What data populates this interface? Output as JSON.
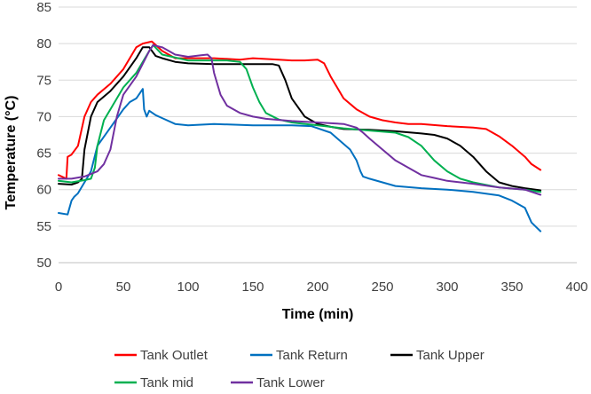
{
  "chart_data": {
    "type": "line",
    "xlabel": "Time (min)",
    "ylabel": "Temperature (°C)",
    "xlim": [
      0,
      400
    ],
    "ylim": [
      50,
      85
    ],
    "xticks": [
      "0",
      "50",
      "100",
      "150",
      "200",
      "250",
      "300",
      "350",
      "400"
    ],
    "yticks": [
      "50",
      "55",
      "60",
      "65",
      "70",
      "75",
      "80",
      "85"
    ],
    "grid": "horizontal",
    "legend": "bottom",
    "series": [
      {
        "name": "Tank Outlet",
        "color": "#ff0000",
        "x": [
          0,
          6,
          7,
          10,
          15,
          20,
          25,
          30,
          40,
          50,
          60,
          65,
          72,
          80,
          90,
          100,
          120,
          140,
          150,
          170,
          180,
          190,
          200,
          205,
          210,
          215,
          220,
          230,
          240,
          250,
          260,
          270,
          280,
          300,
          320,
          330,
          340,
          350,
          360,
          365,
          372
        ],
        "y": [
          62,
          61.5,
          64.5,
          64.8,
          66,
          70,
          72,
          73,
          74.5,
          76.5,
          79.5,
          80,
          80.3,
          79,
          78,
          78,
          78,
          77.8,
          78,
          77.8,
          77.7,
          77.7,
          77.8,
          77.3,
          75.5,
          74,
          72.5,
          71,
          70,
          69.5,
          69.2,
          69,
          69,
          68.7,
          68.5,
          68.3,
          67.3,
          66,
          64.5,
          63.5,
          62.7
        ]
      },
      {
        "name": "Tank Return",
        "color": "#0070c0",
        "x": [
          0,
          7,
          10,
          12,
          15,
          20,
          25,
          30,
          40,
          50,
          55,
          60,
          65,
          66,
          68,
          70,
          75,
          80,
          90,
          100,
          120,
          150,
          180,
          195,
          210,
          225,
          230,
          233,
          235,
          240,
          250,
          260,
          280,
          300,
          320,
          340,
          350,
          360,
          365,
          372
        ],
        "y": [
          56.8,
          56.6,
          58.5,
          59,
          59.5,
          61,
          62.5,
          66,
          68.5,
          71,
          72,
          72.5,
          73.8,
          71,
          70,
          70.8,
          70.2,
          69.8,
          69,
          68.8,
          69,
          68.8,
          68.8,
          68.7,
          67.8,
          65.5,
          64,
          62.5,
          61.8,
          61.5,
          61,
          60.5,
          60.2,
          60,
          59.7,
          59.2,
          58.5,
          57.5,
          55.5,
          54.3
        ]
      },
      {
        "name": "Tank Upper",
        "color": "#000000",
        "x": [
          0,
          10,
          15,
          18,
          20,
          25,
          30,
          40,
          50,
          60,
          65,
          70,
          75,
          80,
          90,
          100,
          120,
          150,
          165,
          170,
          175,
          180,
          190,
          200,
          210,
          220,
          240,
          260,
          280,
          290,
          300,
          310,
          320,
          330,
          340,
          350,
          360,
          372
        ],
        "y": [
          60.8,
          60.7,
          61,
          61.5,
          65.5,
          70,
          72,
          73.5,
          75.5,
          78,
          79.5,
          79.5,
          78.3,
          78,
          77.5,
          77.3,
          77.2,
          77.2,
          77.2,
          77,
          75,
          72.5,
          70,
          69,
          68.6,
          68.3,
          68.2,
          68,
          67.7,
          67.5,
          67,
          66,
          64.5,
          62.5,
          61,
          60.5,
          60.2,
          59.9
        ]
      },
      {
        "name": "Tank mid",
        "color": "#00b050",
        "x": [
          0,
          10,
          20,
          25,
          28,
          30,
          35,
          40,
          45,
          50,
          60,
          70,
          73,
          80,
          100,
          120,
          130,
          140,
          145,
          150,
          155,
          160,
          170,
          180,
          200,
          220,
          240,
          260,
          270,
          280,
          290,
          300,
          310,
          320,
          340,
          360,
          372
        ],
        "y": [
          61.2,
          61,
          61.3,
          61.5,
          63,
          66,
          69.5,
          71,
          72.5,
          74,
          76,
          79,
          79.8,
          78.5,
          77.7,
          77.7,
          77.7,
          77.5,
          76.5,
          74,
          72,
          70.5,
          69.6,
          69.2,
          68.8,
          68.4,
          68.1,
          67.8,
          67.2,
          66,
          64,
          62.5,
          61.5,
          61,
          60.3,
          60,
          59.7
        ]
      },
      {
        "name": "Tank Lower",
        "color": "#7030a0",
        "x": [
          0,
          10,
          20,
          30,
          35,
          40,
          45,
          50,
          60,
          70,
          73,
          80,
          90,
          100,
          110,
          115,
          118,
          120,
          125,
          130,
          140,
          150,
          160,
          180,
          200,
          220,
          230,
          235,
          240,
          250,
          260,
          270,
          280,
          290,
          300,
          320,
          340,
          360,
          372
        ],
        "y": [
          61.5,
          61.5,
          61.8,
          62.5,
          63.5,
          65.5,
          70,
          73,
          75.5,
          79,
          79.8,
          79.5,
          78.5,
          78.2,
          78.4,
          78.5,
          78,
          76,
          73,
          71.5,
          70.5,
          70,
          69.7,
          69.4,
          69.2,
          69,
          68.5,
          67.8,
          67,
          65.5,
          64,
          63,
          62,
          61.6,
          61.2,
          60.8,
          60.3,
          60,
          59.3
        ]
      }
    ]
  }
}
